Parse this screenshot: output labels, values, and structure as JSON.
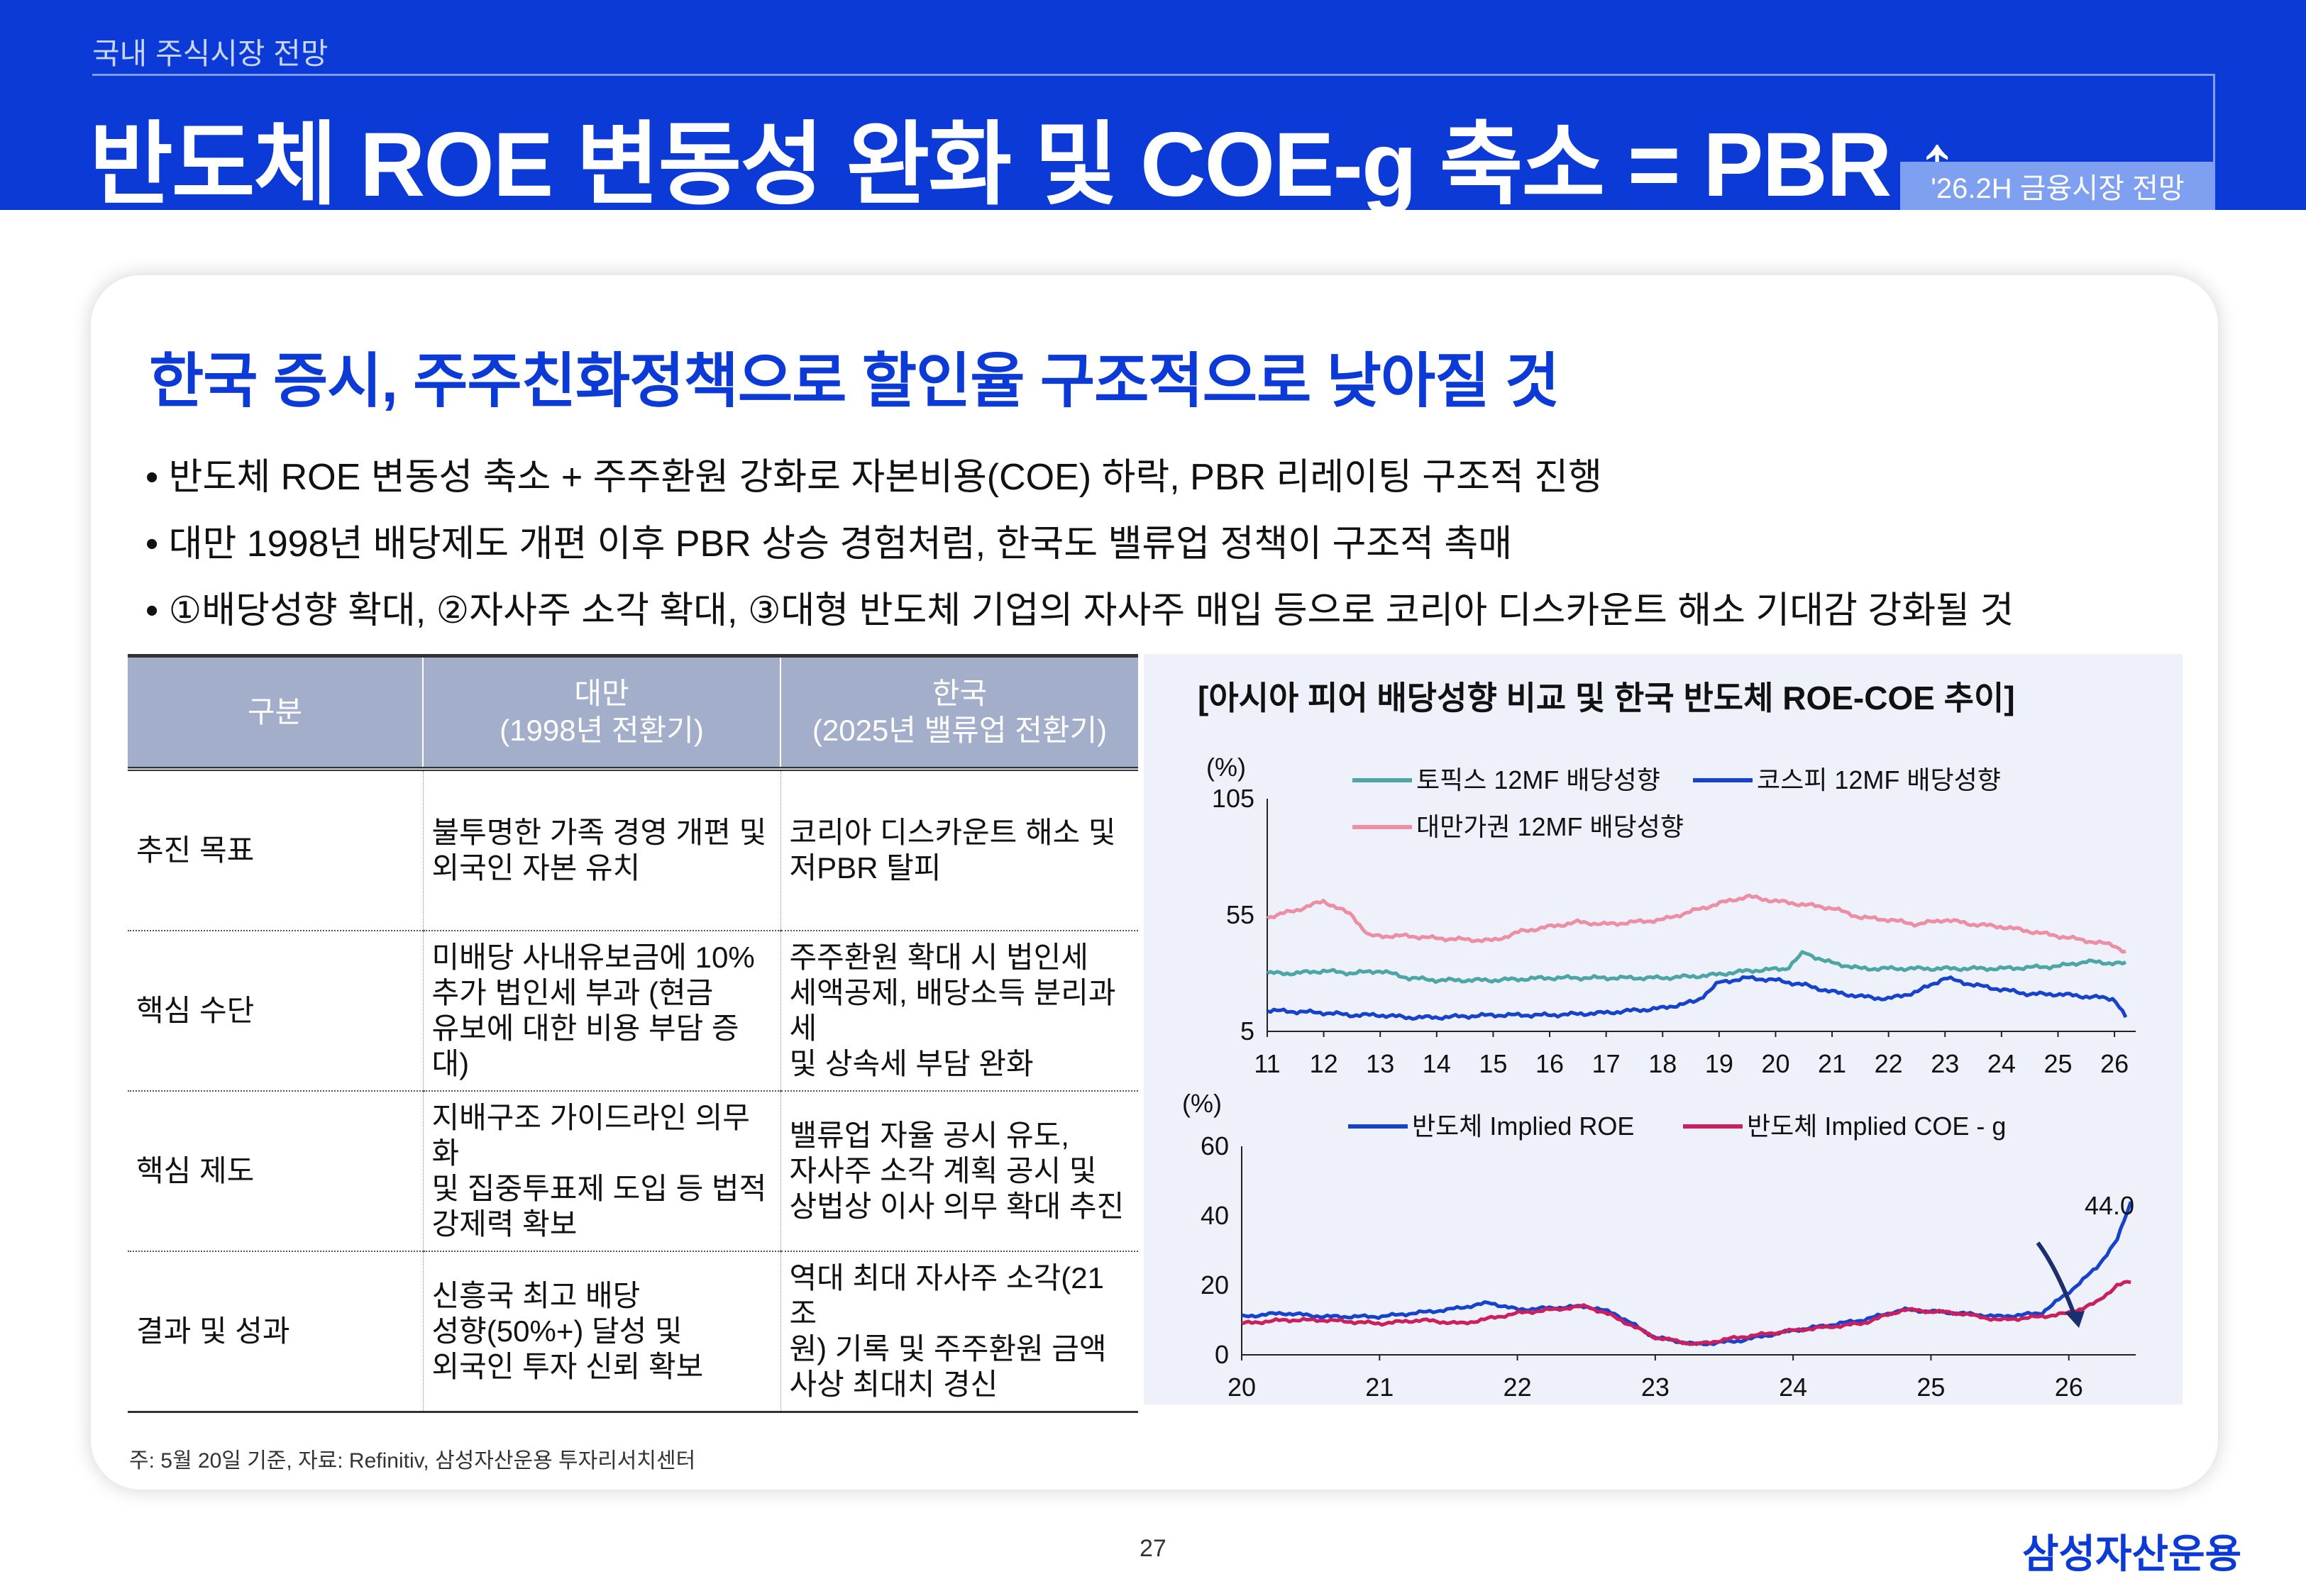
{
  "header": {
    "breadcrumb": "국내 주식시장 전망",
    "title": "반도체 ROE 변동성 완화 및 COE-g 축소 = PBR ↑",
    "badge": "'26.2H 금융시장 전망"
  },
  "headline": "한국 증시, 주주친화정책으로 할인율 구조적으로 낮아질 것",
  "bullets": [
    "• 반도체 ROE 변동성 축소 + 주주환원 강화로 자본비용(COE) 하락, PBR 리레이팅 구조적 진행",
    "• 대만 1998년 배당제도 개편 이후 PBR 상승 경험처럼, 한국도 밸류업 정책이 구조적 촉매",
    "• ①배당성향 확대, ②자사주 소각 확대, ③대형 반도체 기업의 자사주 매입 등으로 코리아 디스카운트 해소 기대감 강화될 것"
  ],
  "table": {
    "headers": [
      "구분",
      "대만",
      "(1998년 전환기)",
      "한국",
      "(2025년 밸류업 전환기)"
    ],
    "rows": [
      {
        "label": "추진 목표",
        "taiwan": [
          "불투명한 가족 경영 개편 및",
          "외국인 자본 유치"
        ],
        "korea": [
          "코리아 디스카운트 해소 및",
          "저PBR 탈피"
        ]
      },
      {
        "label": "핵심 수단",
        "taiwan": [
          "미배당 사내유보금에 10%",
          "추가 법인세 부과 (현금",
          "유보에 대한 비용 부담 증대)"
        ],
        "korea": [
          "주주환원 확대 시 법인세",
          "세액공제, 배당소득 분리과세",
          "및 상속세 부담 완화"
        ]
      },
      {
        "label": "핵심 제도",
        "taiwan": [
          "지배구조 가이드라인 의무화",
          "및 집중투표제 도입 등 법적",
          "강제력 확보"
        ],
        "korea": [
          "밸류업 자율 공시 유도,",
          "자사주 소각 계획 공시 및",
          "상법상 이사 의무 확대 추진"
        ]
      },
      {
        "label": "결과 및 성과",
        "taiwan": [
          "신흥국 최고 배당",
          "성향(50%+) 달성 및",
          "외국인 투자 신뢰 확보"
        ],
        "korea": [
          "역대 최대 자사주 소각(21조",
          "원) 기록 및 주주환원 금액",
          "사상 최대치 경신"
        ]
      }
    ]
  },
  "chart_title": "[아시아 피어 배당성향 비교 및 한국 반도체 ROE-COE 추이]",
  "chart_data": [
    {
      "type": "line",
      "ylabel": "(%)",
      "ylim": [
        5,
        105
      ],
      "yticks": [
        "105",
        "55",
        "5"
      ],
      "xticks": [
        "11",
        "12",
        "13",
        "14",
        "15",
        "16",
        "17",
        "18",
        "19",
        "20",
        "21",
        "22",
        "23",
        "24",
        "25",
        "26"
      ],
      "xlim": [
        11,
        26.2
      ],
      "series": [
        {
          "name": "토픽스 12MF 배당성향",
          "color": "#4ea5a5",
          "points": [
            [
              11,
              30
            ],
            [
              11.5,
              30
            ],
            [
              12,
              31
            ],
            [
              12.5,
              30
            ],
            [
              13,
              31
            ],
            [
              13.5,
              28
            ],
            [
              14,
              27
            ],
            [
              15,
              27
            ],
            [
              16,
              28
            ],
            [
              17,
              28
            ],
            [
              18,
              28
            ],
            [
              18.8,
              29
            ],
            [
              19.5,
              31
            ],
            [
              20.2,
              32
            ],
            [
              20.5,
              39
            ],
            [
              20.9,
              35
            ],
            [
              21.5,
              32
            ],
            [
              22,
              32
            ],
            [
              23,
              32
            ],
            [
              24,
              32
            ],
            [
              25,
              33
            ],
            [
              25.5,
              35
            ],
            [
              26.2,
              34
            ]
          ]
        },
        {
          "name": "코스피 12MF 배당성향",
          "color": "#1642cc",
          "points": [
            [
              11,
              14
            ],
            [
              12,
              13
            ],
            [
              12.5,
              12
            ],
            [
              13,
              12
            ],
            [
              13.5,
              11
            ],
            [
              14,
              11
            ],
            [
              15,
              12
            ],
            [
              16,
              12
            ],
            [
              17,
              13
            ],
            [
              18,
              15
            ],
            [
              18.6,
              18
            ],
            [
              19,
              26
            ],
            [
              19.5,
              28
            ],
            [
              20,
              27
            ],
            [
              20.5,
              25
            ],
            [
              21,
              22
            ],
            [
              21.5,
              20
            ],
            [
              22,
              19
            ],
            [
              22.5,
              22
            ],
            [
              23,
              28
            ],
            [
              23.5,
              25
            ],
            [
              24,
              23
            ],
            [
              24.5,
              21
            ],
            [
              25,
              21
            ],
            [
              25.5,
              20
            ],
            [
              26,
              19
            ],
            [
              26.2,
              11
            ]
          ]
        },
        {
          "name": "대만가권 12MF 배당성향",
          "color": "#ec8fa4",
          "points": [
            [
              11,
              54
            ],
            [
              11.5,
              57
            ],
            [
              12,
              61
            ],
            [
              12.5,
              55
            ],
            [
              12.8,
              46
            ],
            [
              13.5,
              46
            ],
            [
              14,
              45
            ],
            [
              15,
              44
            ],
            [
              15.5,
              48
            ],
            [
              16,
              50
            ],
            [
              16.5,
              52
            ],
            [
              17,
              51
            ],
            [
              18,
              53
            ],
            [
              19,
              60
            ],
            [
              19.5,
              63
            ],
            [
              20,
              61
            ],
            [
              21,
              58
            ],
            [
              21.5,
              54
            ],
            [
              22,
              53
            ],
            [
              22.5,
              51
            ],
            [
              23,
              53
            ],
            [
              23.5,
              51
            ],
            [
              24,
              50
            ],
            [
              25,
              46
            ],
            [
              25.5,
              44
            ],
            [
              26,
              42
            ],
            [
              26.2,
              39
            ]
          ]
        }
      ]
    },
    {
      "type": "line",
      "ylabel": "(%)",
      "ylim": [
        0,
        60
      ],
      "yticks": [
        "60",
        "40",
        "20",
        "0"
      ],
      "xticks": [
        "20",
        "21",
        "22",
        "23",
        "24",
        "25",
        "26"
      ],
      "xlim": [
        20,
        27
      ],
      "annotation": "44.0",
      "series": [
        {
          "name": "반도체 Implied ROE",
          "color": "#1642cc",
          "points": [
            [
              20,
              11
            ],
            [
              20.3,
              12
            ],
            [
              20.6,
              11
            ],
            [
              21,
              11
            ],
            [
              21.5,
              13
            ],
            [
              21.8,
              15
            ],
            [
              22,
              13
            ],
            [
              22.5,
              14
            ],
            [
              22.7,
              12
            ],
            [
              23,
              5
            ],
            [
              23.3,
              3
            ],
            [
              23.6,
              4
            ],
            [
              24,
              7
            ],
            [
              24.5,
              10
            ],
            [
              24.8,
              13
            ],
            [
              25.2,
              12
            ],
            [
              25.5,
              11
            ],
            [
              25.8,
              12
            ],
            [
              26,
              18
            ],
            [
              26.2,
              25
            ],
            [
              26.35,
              33
            ],
            [
              26.45,
              44
            ]
          ]
        },
        {
          "name": "반도체 Implied COE - g",
          "color": "#cc1f5e",
          "points": [
            [
              20,
              9
            ],
            [
              20.3,
              10
            ],
            [
              20.6,
              10
            ],
            [
              21,
              9
            ],
            [
              21.3,
              10
            ],
            [
              21.6,
              9
            ],
            [
              22,
              12
            ],
            [
              22.5,
              14
            ],
            [
              22.7,
              11
            ],
            [
              23,
              5
            ],
            [
              23.3,
              3
            ],
            [
              23.6,
              5
            ],
            [
              24,
              7
            ],
            [
              24.5,
              9
            ],
            [
              24.8,
              13
            ],
            [
              25.2,
              12
            ],
            [
              25.5,
              10
            ],
            [
              25.8,
              11
            ],
            [
              26,
              12
            ],
            [
              26.2,
              15
            ],
            [
              26.35,
              20
            ],
            [
              26.45,
              21
            ]
          ]
        }
      ]
    }
  ],
  "footnote": "주: 5월 20일 기준, 자료: Refinitiv, 삼성자산운용 투자리서치센터",
  "page_number": "27",
  "logo": "삼성자산운용"
}
